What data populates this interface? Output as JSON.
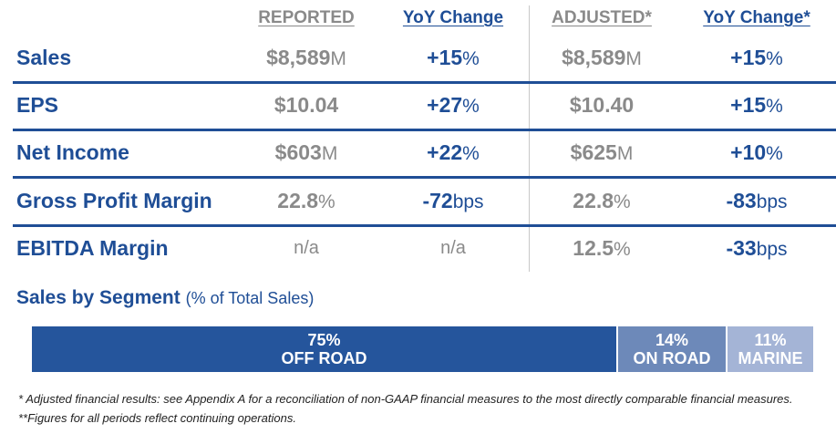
{
  "headers": {
    "reported": "REPORTED",
    "reported_yoy": "YoY Change",
    "adjusted": "ADJUSTED*",
    "adjusted_yoy": "YoY Change*"
  },
  "rows": [
    {
      "label": "Sales",
      "reported": "$8,589",
      "reported_unit": "M",
      "reported_yoy": "+15",
      "reported_yoy_unit": "%",
      "adjusted": "$8,589",
      "adjusted_unit": "M",
      "adjusted_yoy": "+15",
      "adjusted_yoy_unit": "%"
    },
    {
      "label": "EPS",
      "reported": "$10.04",
      "reported_unit": "",
      "reported_yoy": "+27",
      "reported_yoy_unit": "%",
      "adjusted": "$10.40",
      "adjusted_unit": "",
      "adjusted_yoy": "+15",
      "adjusted_yoy_unit": "%"
    },
    {
      "label": "Net Income",
      "reported": "$603",
      "reported_unit": "M",
      "reported_yoy": "+22",
      "reported_yoy_unit": "%",
      "adjusted": "$625",
      "adjusted_unit": "M",
      "adjusted_yoy": "+10",
      "adjusted_yoy_unit": "%"
    },
    {
      "label": "Gross Profit Margin",
      "reported": "22.8",
      "reported_unit": "%",
      "reported_yoy": "-72",
      "reported_yoy_unit": "bps",
      "adjusted": "22.8",
      "adjusted_unit": "%",
      "adjusted_yoy": "-83",
      "adjusted_yoy_unit": "bps"
    },
    {
      "label": "EBITDA Margin",
      "reported": "n/a",
      "reported_unit": "",
      "reported_yoy": "n/a",
      "reported_yoy_unit": "",
      "adjusted": "12.5",
      "adjusted_unit": "%",
      "adjusted_yoy": "-33",
      "adjusted_yoy_unit": "bps"
    }
  ],
  "segments": {
    "title": "Sales by Segment",
    "subtitle": "(% of Total Sales)",
    "items": [
      {
        "pct": "75%",
        "name": "OFF ROAD",
        "share": 75,
        "color": "#25559c"
      },
      {
        "pct": "14%",
        "name": "ON ROAD",
        "share": 14,
        "color": "#6d89b9"
      },
      {
        "pct": "11%",
        "name": "MARINE",
        "share": 11,
        "color": "#a4b4d6"
      }
    ]
  },
  "footnotes": {
    "adjusted": "* Adjusted financial results:  see Appendix A for a reconciliation of non-GAAP financial measures to the most directly comparable financial measures.",
    "periods": "**Figures for all periods reflect continuing operations."
  }
}
